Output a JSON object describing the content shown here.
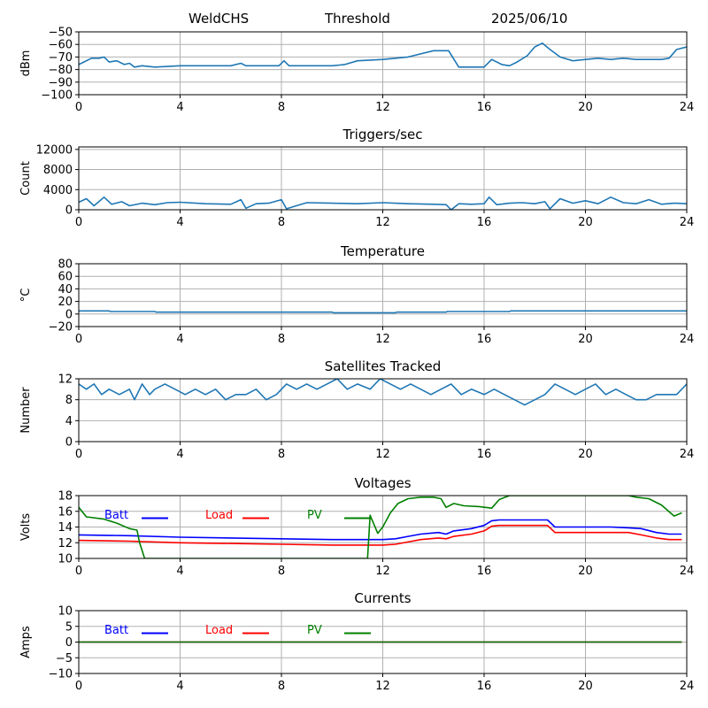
{
  "header": {
    "station": "WeldCHS",
    "label": "Threshold",
    "date": "2025/06/10"
  },
  "colors": {
    "blue_series": "#1f77b4",
    "batt": "#0000ff",
    "load": "#ff0000",
    "pv": "#008000",
    "grid": "#b0b0b0"
  },
  "chart_data": [
    {
      "id": "threshold",
      "type": "line",
      "title": "",
      "xlabel": "",
      "ylabel": "dBm",
      "xlim": [
        0,
        24
      ],
      "ylim": [
        -100,
        -50
      ],
      "xticks": [
        "0",
        "4",
        "8",
        "12",
        "16",
        "20",
        "24"
      ],
      "yticks": [
        "−100",
        "−90",
        "−80",
        "−70",
        "−60",
        "−50"
      ],
      "grid": true,
      "series": [
        {
          "color": "#1f77b4",
          "x": [
            0,
            0.2,
            0.5,
            0.8,
            1.0,
            1.2,
            1.5,
            1.8,
            2.0,
            2.2,
            2.5,
            3.0,
            4.0,
            5.0,
            6.0,
            6.4,
            6.6,
            7.0,
            7.5,
            7.9,
            8.1,
            8.3,
            9.0,
            10.0,
            10.5,
            11.0,
            12.0,
            12.5,
            13.0,
            14.0,
            14.3,
            14.6,
            15.0,
            15.5,
            16.0,
            16.3,
            16.7,
            17.0,
            17.3,
            17.7,
            18.0,
            18.3,
            18.6,
            19.0,
            19.5,
            20.0,
            20.5,
            21.0,
            21.5,
            22.0,
            22.5,
            23.0,
            23.3,
            23.6,
            24.0
          ],
          "y": [
            -76,
            -74,
            -71,
            -71,
            -70,
            -74,
            -73,
            -76,
            -75,
            -78,
            -77,
            -78,
            -77,
            -77,
            -77,
            -75,
            -77,
            -77,
            -77,
            -77,
            -73,
            -77,
            -77,
            -77,
            -76,
            -73,
            -72,
            -71,
            -70,
            -65,
            -65,
            -65,
            -78,
            -78,
            -78,
            -72,
            -76,
            -77,
            -74,
            -69,
            -62,
            -59,
            -64,
            -70,
            -73,
            -72,
            -71,
            -72,
            -71,
            -72,
            -72,
            -72,
            -71,
            -64,
            -62
          ]
        }
      ]
    },
    {
      "id": "triggers",
      "type": "line",
      "title": "Triggers/sec",
      "xlabel": "",
      "ylabel": "Count",
      "xlim": [
        0,
        24
      ],
      "ylim": [
        0,
        12500
      ],
      "xticks": [
        "0",
        "4",
        "8",
        "12",
        "16",
        "20",
        "24"
      ],
      "yticks": [
        "0",
        "4000",
        "8000",
        "12000"
      ],
      "grid": true,
      "series": [
        {
          "color": "#1f77b4",
          "x": [
            0,
            0.3,
            0.6,
            1.0,
            1.3,
            1.7,
            2.0,
            2.5,
            3.0,
            3.5,
            4.0,
            5.0,
            6.0,
            6.4,
            6.6,
            7.0,
            7.5,
            8.0,
            8.2,
            9.0,
            10.0,
            11.0,
            12.0,
            13.0,
            14.0,
            14.5,
            14.7,
            15.0,
            15.5,
            16.0,
            16.2,
            16.5,
            17.0,
            17.5,
            18.0,
            18.4,
            18.6,
            19.0,
            19.5,
            20.0,
            20.5,
            21.0,
            21.5,
            22.0,
            22.5,
            23.0,
            23.5,
            24.0
          ],
          "y": [
            1500,
            2200,
            800,
            2500,
            1100,
            1600,
            800,
            1300,
            1000,
            1400,
            1500,
            1200,
            1100,
            2000,
            300,
            1200,
            1300,
            2000,
            200,
            1400,
            1300,
            1200,
            1400,
            1200,
            1100,
            1000,
            0,
            1200,
            1100,
            1200,
            2500,
            1000,
            1300,
            1400,
            1200,
            1600,
            200,
            2200,
            1300,
            1800,
            1200,
            2500,
            1400,
            1200,
            2000,
            1100,
            1300,
            1200
          ]
        }
      ]
    },
    {
      "id": "temperature",
      "type": "line",
      "title": "Temperature",
      "xlabel": "",
      "ylabel": "°C",
      "xlim": [
        0,
        24
      ],
      "ylim": [
        -20,
        80
      ],
      "xticks": [
        "0",
        "4",
        "8",
        "12",
        "16",
        "20",
        "24"
      ],
      "yticks": [
        "−20",
        "0",
        "20",
        "40",
        "60",
        "80"
      ],
      "grid": true,
      "series": [
        {
          "color": "#1f77b4",
          "x": [
            0,
            1.2,
            1.25,
            3.0,
            3.05,
            10.0,
            10.05,
            12.5,
            12.55,
            14.5,
            14.55,
            17.0,
            17.05,
            24.0
          ],
          "y": [
            5,
            5,
            4,
            4,
            3,
            3,
            2,
            2,
            3,
            3,
            4,
            4,
            5,
            5
          ]
        }
      ]
    },
    {
      "id": "satellites",
      "type": "line",
      "title": "Satellites Tracked",
      "xlabel": "",
      "ylabel": "Number",
      "xlim": [
        0,
        24
      ],
      "ylim": [
        0,
        12
      ],
      "xticks": [
        "0",
        "4",
        "8",
        "12",
        "16",
        "20",
        "24"
      ],
      "yticks": [
        "0",
        "4",
        "8",
        "12"
      ],
      "grid": true,
      "series": [
        {
          "color": "#1f77b4",
          "x": [
            0,
            0.3,
            0.6,
            0.9,
            1.2,
            1.6,
            2.0,
            2.2,
            2.5,
            2.8,
            3.0,
            3.4,
            3.8,
            4.2,
            4.6,
            5.0,
            5.4,
            5.8,
            6.2,
            6.6,
            7.0,
            7.4,
            7.8,
            8.2,
            8.6,
            9.0,
            9.4,
            9.8,
            10.2,
            10.6,
            11.0,
            11.5,
            11.9,
            12.3,
            12.7,
            13.1,
            13.5,
            13.9,
            14.3,
            14.7,
            15.1,
            15.5,
            16.0,
            16.4,
            16.8,
            17.2,
            17.6,
            18.0,
            18.4,
            18.8,
            19.2,
            19.6,
            20.0,
            20.4,
            20.8,
            21.2,
            21.6,
            22.0,
            22.4,
            22.8,
            23.2,
            23.6,
            24.0
          ],
          "y": [
            11,
            10,
            11,
            9,
            10,
            9,
            10,
            8,
            11,
            9,
            10,
            11,
            10,
            9,
            10,
            9,
            10,
            8,
            9,
            9,
            10,
            8,
            9,
            11,
            10,
            11,
            10,
            11,
            12,
            10,
            11,
            10,
            12,
            11,
            10,
            11,
            10,
            9,
            10,
            11,
            9,
            10,
            9,
            10,
            9,
            8,
            7,
            8,
            9,
            11,
            10,
            9,
            10,
            11,
            9,
            10,
            9,
            8,
            8,
            9,
            9,
            9,
            11
          ]
        }
      ]
    },
    {
      "id": "voltages",
      "type": "line",
      "title": "Voltages",
      "xlabel": "",
      "ylabel": "Volts",
      "xlim": [
        0,
        24
      ],
      "ylim": [
        10,
        18
      ],
      "xticks": [
        "0",
        "4",
        "8",
        "12",
        "16",
        "20",
        "24"
      ],
      "yticks": [
        "10",
        "12",
        "14",
        "16",
        "18"
      ],
      "grid": true,
      "legend": {
        "position": "top-left",
        "entries": [
          "Batt",
          "Load",
          "PV"
        ]
      },
      "series": [
        {
          "name": "Batt",
          "color": "#0000ff",
          "x": [
            0,
            2,
            4,
            6,
            8,
            10,
            12,
            12.5,
            13,
            13.5,
            14.2,
            14.5,
            14.8,
            15.5,
            16,
            16.3,
            16.6,
            18,
            18.5,
            18.8,
            20,
            21,
            21.7,
            22.2,
            22.8,
            23.3,
            23.8
          ],
          "y": [
            13.0,
            12.9,
            12.7,
            12.6,
            12.5,
            12.4,
            12.4,
            12.5,
            12.8,
            13.1,
            13.3,
            13.1,
            13.5,
            13.8,
            14.2,
            14.8,
            14.9,
            14.9,
            14.9,
            14.0,
            14.0,
            14.0,
            13.9,
            13.8,
            13.3,
            13.1,
            13.1
          ]
        },
        {
          "name": "Load",
          "color": "#ff0000",
          "x": [
            0,
            2,
            4,
            6,
            8,
            10,
            12,
            12.5,
            13,
            13.5,
            14.2,
            14.5,
            14.8,
            15.5,
            16,
            16.3,
            16.6,
            18,
            18.5,
            18.8,
            20,
            21,
            21.7,
            22.2,
            22.8,
            23.3,
            23.8
          ],
          "y": [
            12.3,
            12.2,
            12.0,
            11.9,
            11.8,
            11.7,
            11.7,
            11.8,
            12.1,
            12.4,
            12.6,
            12.5,
            12.8,
            13.1,
            13.5,
            14.1,
            14.2,
            14.2,
            14.2,
            13.3,
            13.3,
            13.3,
            13.3,
            13.0,
            12.6,
            12.4,
            12.4
          ]
        },
        {
          "name": "PV",
          "color": "#008000",
          "x": [
            0,
            0.3,
            1.0,
            1.5,
            2.0,
            2.3,
            2.4,
            2.5,
            2.6,
            11.4,
            11.5,
            11.8,
            12.0,
            12.3,
            12.6,
            13.0,
            13.5,
            14.0,
            14.3,
            14.5,
            14.8,
            15.2,
            15.8,
            16.3,
            16.6,
            17.0,
            21.7,
            22.0,
            22.5,
            23.0,
            23.5,
            23.8
          ],
          "y": [
            16.5,
            15.3,
            15.0,
            14.5,
            13.8,
            13.6,
            12.0,
            11.0,
            10.0,
            10.0,
            15.5,
            13.2,
            14.0,
            15.8,
            17.0,
            17.6,
            17.8,
            17.8,
            17.6,
            16.5,
            17.0,
            16.7,
            16.6,
            16.4,
            17.5,
            18.0,
            18.0,
            17.8,
            17.6,
            16.8,
            15.4,
            15.8
          ]
        }
      ]
    },
    {
      "id": "currents",
      "type": "line",
      "title": "Currents",
      "xlabel": "",
      "ylabel": "Amps",
      "xlim": [
        0,
        24
      ],
      "ylim": [
        -10,
        10
      ],
      "xticks": [
        "0",
        "4",
        "8",
        "12",
        "16",
        "20",
        "24"
      ],
      "yticks": [
        "−10",
        "−5",
        "0",
        "5",
        "10"
      ],
      "grid": true,
      "legend": {
        "position": "top-left",
        "entries": [
          "Batt",
          "Load",
          "PV"
        ]
      },
      "series": [
        {
          "name": "Batt",
          "color": "#0000ff",
          "x": [
            0,
            23.8
          ],
          "y": [
            0,
            0
          ]
        },
        {
          "name": "Load",
          "color": "#ff0000",
          "x": [
            0,
            23.8
          ],
          "y": [
            0,
            0
          ]
        },
        {
          "name": "PV",
          "color": "#008000",
          "x": [
            0,
            23.8
          ],
          "y": [
            0,
            0
          ]
        }
      ]
    }
  ]
}
